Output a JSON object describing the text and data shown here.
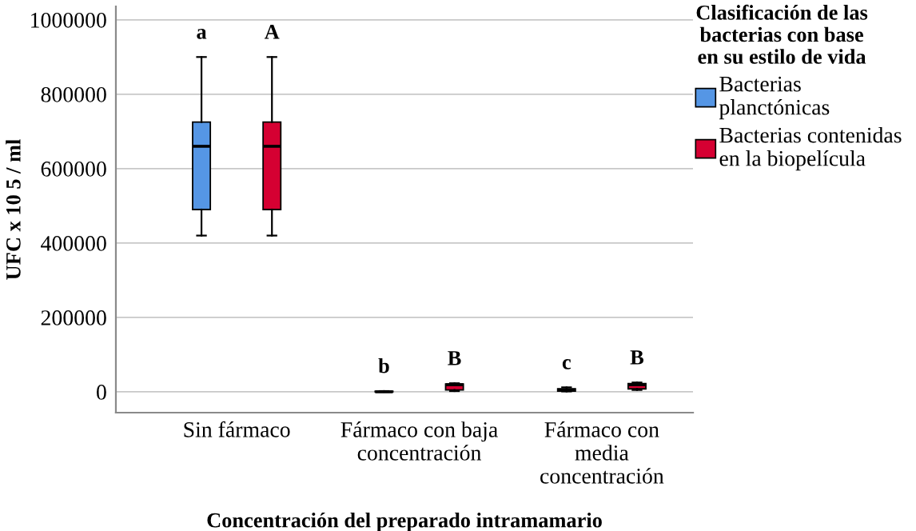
{
  "chart_data": {
    "type": "box",
    "xlabel": "Concentración del preparado intramamario",
    "ylabel": "UFC x 10 5 / ml",
    "legend_title": "Clasificación de las\nbacterias con base\nen su estilo de vida",
    "categories": [
      "Sin fármaco",
      "Fármaco con baja\nconcentración",
      "Fármaco con\nmedia\nconcentración"
    ],
    "series": [
      {
        "name": "Bacterias\nplanctónicas",
        "color": "#5596e5",
        "boxes": [
          {
            "low": 420000,
            "q1": 490000,
            "median": 660000,
            "q3": 725000,
            "high": 900000
          },
          {
            "low": 0,
            "q1": 0,
            "median": 0,
            "q3": 1500,
            "high": 2000
          },
          {
            "low": 1000,
            "q1": 2000,
            "median": 5000,
            "q3": 8000,
            "high": 12000
          }
        ]
      },
      {
        "name": "Bacterias contenidas\nen la biopelícula",
        "color": "#d50032",
        "boxes": [
          {
            "low": 420000,
            "q1": 490000,
            "median": 660000,
            "q3": 725000,
            "high": 900000
          },
          {
            "low": 2000,
            "q1": 5000,
            "median": 19000,
            "q3": 21000,
            "high": 23000
          },
          {
            "low": 5000,
            "q1": 8000,
            "median": 19000,
            "q3": 22000,
            "high": 25000
          }
        ]
      }
    ],
    "ylim": [
      -56000,
      1036000
    ],
    "yticks": [
      0,
      200000,
      400000,
      600000,
      800000,
      1000000
    ],
    "grid": "y",
    "legend": "right",
    "annotations": [
      "a",
      "A",
      "b",
      "B",
      "c",
      "B"
    ]
  }
}
